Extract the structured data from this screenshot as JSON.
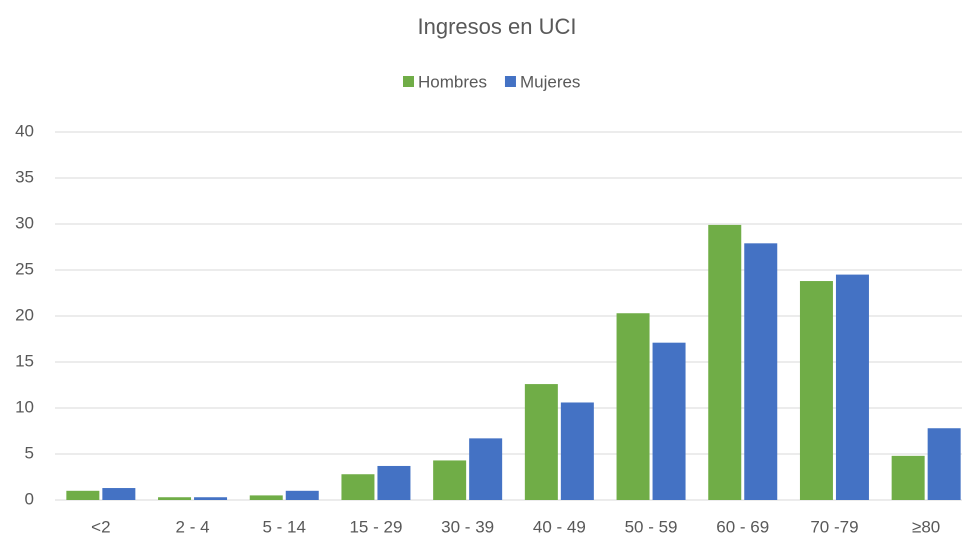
{
  "chart_data": {
    "type": "bar",
    "title": "Ingresos en UCI",
    "categories": [
      "<2",
      "2 - 4",
      "5 - 14",
      "15 - 29",
      "30 - 39",
      "40 - 49",
      "50 - 59",
      "60 - 69",
      "70 -79",
      "≥80"
    ],
    "series": [
      {
        "name": "Hombres",
        "color": "#70ad47",
        "values": [
          1.0,
          0.3,
          0.5,
          2.8,
          4.3,
          12.6,
          20.3,
          29.9,
          23.8,
          4.8
        ]
      },
      {
        "name": "Mujeres",
        "color": "#4472c4",
        "values": [
          1.3,
          0.3,
          1.0,
          3.7,
          6.7,
          10.6,
          17.1,
          27.9,
          24.5,
          7.8
        ]
      }
    ],
    "ylim": [
      0,
      40
    ],
    "yticks": [
      0,
      5,
      10,
      15,
      20,
      25,
      30,
      35,
      40
    ],
    "grid": true,
    "legend": "top"
  }
}
